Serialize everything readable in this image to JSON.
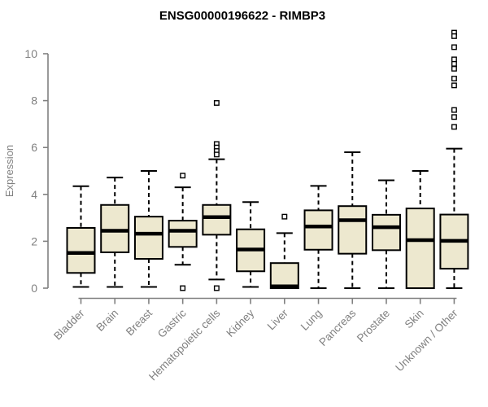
{
  "title": "ENSG00000196622 - RIMBP3",
  "colors": {
    "background": "#FFFFFF",
    "box_fill": "#EDE8CF",
    "box_stroke": "#000000",
    "median": "#000000",
    "whisker": "#000000",
    "outlier_stroke": "#000000",
    "axis": "#808080",
    "tick_label": "#808080",
    "title": "#000000"
  },
  "chart_data": {
    "type": "boxplot",
    "title": "ENSG00000196622 - RIMBP3",
    "xlabel": "",
    "ylabel": "Expression",
    "ylim": [
      0,
      11
    ],
    "yticks": [
      0,
      2,
      4,
      6,
      8,
      10
    ],
    "grid": false,
    "legend": "none",
    "categories": [
      "Bladder",
      "Brain",
      "Breast",
      "Gastric",
      "Hematopoietic cells",
      "Kidney",
      "Liver",
      "Lung",
      "Pancreas",
      "Prostate",
      "Skin",
      "Unknown / Other"
    ],
    "series": [
      {
        "category": "Bladder",
        "low": 0.05,
        "q1": 0.65,
        "median": 1.5,
        "q3": 2.57,
        "high": 4.35,
        "outliers": []
      },
      {
        "category": "Brain",
        "low": 0.05,
        "q1": 1.53,
        "median": 2.45,
        "q3": 3.55,
        "high": 4.72,
        "outliers": []
      },
      {
        "category": "Breast",
        "low": 0.05,
        "q1": 1.25,
        "median": 2.32,
        "q3": 3.05,
        "high": 5.0,
        "outliers": []
      },
      {
        "category": "Gastric",
        "low": 1.0,
        "q1": 1.76,
        "median": 2.45,
        "q3": 2.88,
        "high": 4.3,
        "outliers": [
          4.8,
          0.0
        ]
      },
      {
        "category": "Hematopoietic cells",
        "low": 0.37,
        "q1": 2.28,
        "median": 3.03,
        "q3": 3.55,
        "high": 5.5,
        "outliers": [
          7.9,
          6.15,
          6.0,
          5.85,
          5.7,
          0.0
        ]
      },
      {
        "category": "Kidney",
        "low": 0.05,
        "q1": 0.72,
        "median": 1.65,
        "q3": 2.51,
        "high": 3.67,
        "outliers": []
      },
      {
        "category": "Liver",
        "low": 0.0,
        "q1": 0.0,
        "median": 0.08,
        "q3": 1.07,
        "high": 2.35,
        "outliers": [
          3.05
        ]
      },
      {
        "category": "Lung",
        "low": 0.0,
        "q1": 1.64,
        "median": 2.63,
        "q3": 3.32,
        "high": 4.36,
        "outliers": []
      },
      {
        "category": "Pancreas",
        "low": 0.0,
        "q1": 1.47,
        "median": 2.9,
        "q3": 3.5,
        "high": 5.8,
        "outliers": []
      },
      {
        "category": "Prostate",
        "low": 0.0,
        "q1": 1.62,
        "median": 2.6,
        "q3": 3.13,
        "high": 4.6,
        "outliers": []
      },
      {
        "category": "Skin",
        "low": 0.0,
        "q1": 0.0,
        "median": 2.05,
        "q3": 3.4,
        "high": 5.0,
        "outliers": []
      },
      {
        "category": "Unknown / Other",
        "low": 0.0,
        "q1": 0.83,
        "median": 2.02,
        "q3": 3.14,
        "high": 5.95,
        "outliers": [
          10.9,
          10.75,
          10.28,
          9.76,
          9.57,
          9.36,
          8.94,
          8.65,
          7.6,
          7.3,
          6.88
        ]
      }
    ]
  }
}
